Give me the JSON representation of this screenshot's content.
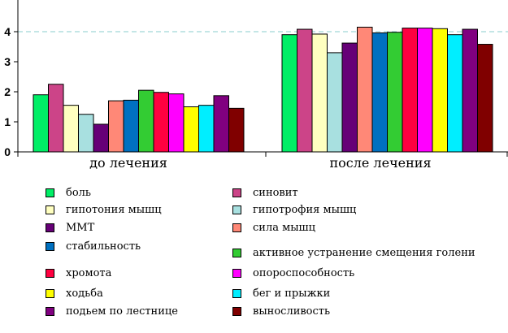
{
  "chart_data": {
    "type": "bar",
    "categories": [
      "до лечения",
      "после лечения"
    ],
    "ylim": [
      0,
      5
    ],
    "yticks": [
      "0",
      "1",
      "2",
      "3",
      "4"
    ],
    "reference_line": 4,
    "series": [
      {
        "name": "боль",
        "color": "#00ee66",
        "values": [
          1.9,
          3.9
        ]
      },
      {
        "name": "синовит",
        "color": "#cc4488",
        "values": [
          2.25,
          4.08
        ]
      },
      {
        "name": "гипотония мышц",
        "color": "#ffffc0",
        "values": [
          1.55,
          3.92
        ]
      },
      {
        "name": "гипотрофия мышц",
        "color": "#a8e0e0",
        "values": [
          1.25,
          3.3
        ]
      },
      {
        "name": "ММТ",
        "color": "#660077",
        "values": [
          0.92,
          3.62
        ]
      },
      {
        "name": "сила мышц",
        "color": "#ff8877",
        "values": [
          1.7,
          4.15
        ]
      },
      {
        "name": "стабильность",
        "color": "#0070c0",
        "values": [
          1.72,
          3.96
        ]
      },
      {
        "name": "активное устранение смещения голени",
        "color": "#33cc33",
        "values": [
          2.05,
          3.98
        ]
      },
      {
        "name": "хромота",
        "color": "#ff0040",
        "values": [
          1.98,
          4.12
        ]
      },
      {
        "name": "опороспособность",
        "color": "#ff00ff",
        "values": [
          1.93,
          4.12
        ]
      },
      {
        "name": "ходьба",
        "color": "#ffff00",
        "values": [
          1.5,
          4.1
        ]
      },
      {
        "name": "бег и прыжки",
        "color": "#00eeff",
        "values": [
          1.55,
          3.9
        ]
      },
      {
        "name": "подьем по лестнице",
        "color": "#800080",
        "values": [
          1.87,
          4.08
        ]
      },
      {
        "name": "выносливость",
        "color": "#800000",
        "values": [
          1.45,
          3.58
        ]
      }
    ]
  }
}
